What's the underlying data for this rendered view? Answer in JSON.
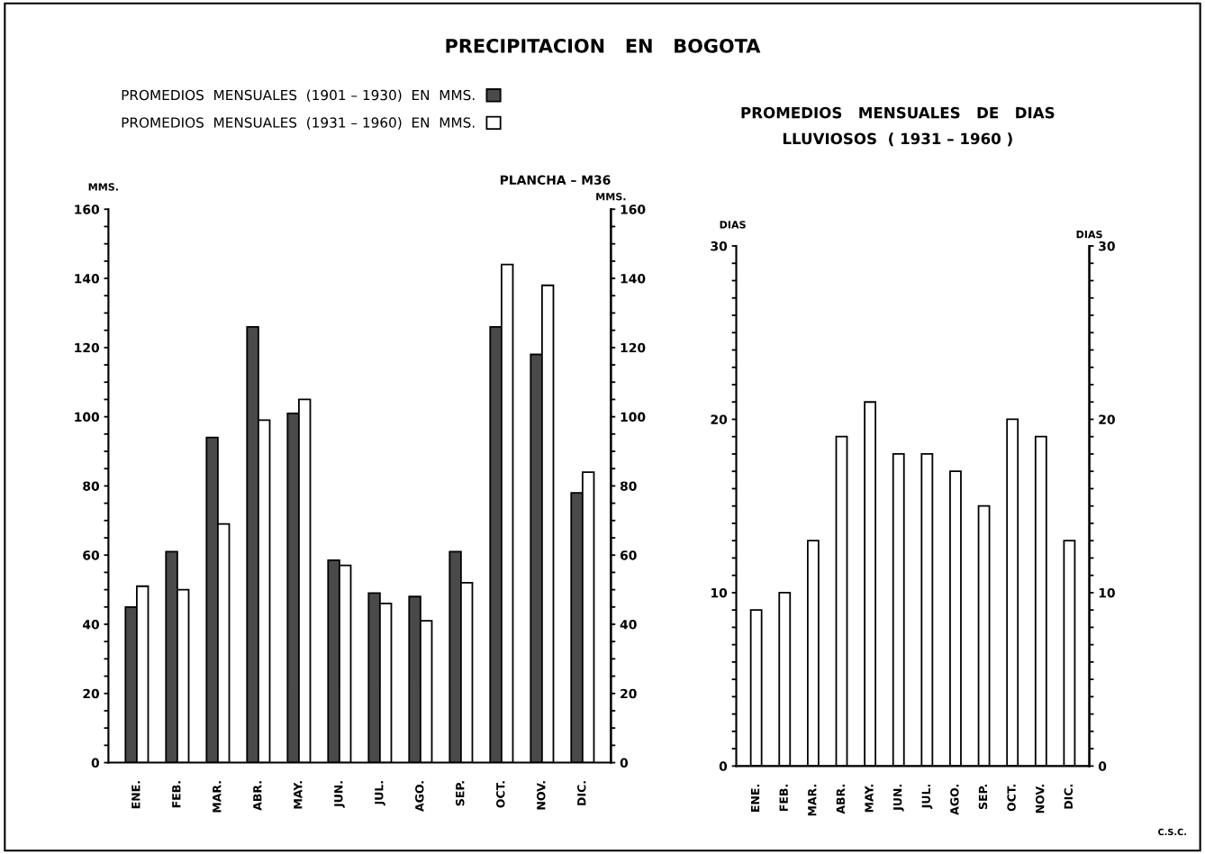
{
  "chart_data": [
    {
      "type": "bar",
      "title": "PRECIPITACION   EN   BOGOTA",
      "ylabel": "MMS.",
      "y2label": "MMS.",
      "categories": [
        "ENE.",
        "FEB.",
        "MAR.",
        "ABR.",
        "MAY.",
        "JUN.",
        "JUL.",
        "AGO.",
        "SEP.",
        "OCT.",
        "NOV.",
        "DIC."
      ],
      "series": [
        {
          "name": "PROMEDIOS  MENSUALES  (1901 – 1930)  EN  MMS.",
          "color": "#4a4a4a",
          "values": [
            45,
            61,
            94,
            126,
            101,
            58.5,
            49,
            48,
            61,
            126,
            118,
            78
          ]
        },
        {
          "name": "PROMEDIOS  MENSUALES  (1931 – 1960)  EN  MMS.",
          "color": "#ffffff",
          "values": [
            51,
            50,
            69,
            99,
            105,
            57,
            46,
            41,
            52,
            144,
            138,
            84
          ]
        }
      ],
      "ylim": [
        0,
        160
      ],
      "yticks": [
        0,
        {
          "value": 5,
          "label": null
        },
        {
          "value": 10,
          "label": null
        },
        {
          "value": 15,
          "label": null
        },
        20,
        {
          "value": 25,
          "label": null
        },
        {
          "value": 30,
          "label": null
        },
        {
          "value": 35,
          "label": null
        },
        40,
        {
          "value": 45,
          "label": null
        },
        {
          "value": 50,
          "label": null
        },
        {
          "value": 55,
          "label": null
        },
        60,
        {
          "value": 65,
          "label": null
        },
        {
          "value": 70,
          "label": null
        },
        {
          "value": 75,
          "label": null
        },
        80,
        {
          "value": 85,
          "label": null
        },
        {
          "value": 90,
          "label": null
        },
        {
          "value": 95,
          "label": null
        },
        100,
        {
          "value": 105,
          "label": null
        },
        {
          "value": 110,
          "label": null
        },
        {
          "value": 115,
          "label": null
        },
        120,
        {
          "value": 125,
          "label": null
        },
        {
          "value": 130,
          "label": null
        },
        {
          "value": 135,
          "label": null
        },
        140,
        {
          "value": 145,
          "label": null
        },
        {
          "value": 150,
          "label": null
        },
        {
          "value": 155,
          "label": null
        },
        160
      ],
      "y2lim": [
        0,
        160
      ],
      "y2ticks": [
        0,
        {
          "value": 5,
          "label": null
        },
        {
          "value": 10,
          "label": null
        },
        {
          "value": 15,
          "label": null
        },
        20,
        {
          "value": 25,
          "label": null
        },
        {
          "value": 30,
          "label": null
        },
        {
          "value": 35,
          "label": null
        },
        40,
        {
          "value": 45,
          "label": null
        },
        {
          "value": 50,
          "label": null
        },
        {
          "value": 55,
          "label": null
        },
        60,
        {
          "value": 65,
          "label": null
        },
        {
          "value": 70,
          "label": null
        },
        {
          "value": 75,
          "label": null
        },
        80,
        {
          "value": 85,
          "label": null
        },
        {
          "value": 90,
          "label": null
        },
        {
          "value": 95,
          "label": null
        },
        100,
        {
          "value": 105,
          "label": null
        },
        {
          "value": 110,
          "label": null
        },
        {
          "value": 115,
          "label": null
        },
        120,
        {
          "value": 125,
          "label": null
        },
        {
          "value": 130,
          "label": null
        },
        {
          "value": 135,
          "label": null
        },
        140,
        {
          "value": 145,
          "label": null
        },
        {
          "value": 150,
          "label": null
        },
        {
          "value": 155,
          "label": null
        },
        160
      ],
      "legend": "top left",
      "grid": false,
      "annotations": [
        "PLANCHA – M36"
      ]
    },
    {
      "type": "bar",
      "title": "PROMEDIOS   MENSUALES   DE   DIAS\nLLUVIOSOS  ( 1931 – 1960 )",
      "ylabel": "DIAS",
      "y2label": "DIAS",
      "categories": [
        "ENE.",
        "FEB.",
        "MAR.",
        "ABR.",
        "MAY.",
        "JUN.",
        "JUL.",
        "AGO.",
        "SEP.",
        "OCT.",
        "NOV.",
        "DIC."
      ],
      "series": [
        {
          "color": "#ffffff",
          "values": [
            9,
            10,
            13,
            19,
            21,
            18,
            18,
            17,
            15,
            20,
            19,
            13
          ]
        }
      ],
      "ylim": [
        0,
        30
      ],
      "yticks": [
        0,
        {
          "value": 1,
          "label": null
        },
        {
          "value": 2,
          "label": null
        },
        {
          "value": 3,
          "label": null
        },
        {
          "value": 4,
          "label": null
        },
        {
          "value": 5,
          "label": null
        },
        {
          "value": 6,
          "label": null
        },
        {
          "value": 7,
          "label": null
        },
        {
          "value": 8,
          "label": null
        },
        {
          "value": 9,
          "label": null
        },
        10,
        {
          "value": 11,
          "label": null
        },
        {
          "value": 12,
          "label": null
        },
        {
          "value": 13,
          "label": null
        },
        {
          "value": 14,
          "label": null
        },
        {
          "value": 15,
          "label": null
        },
        {
          "value": 16,
          "label": null
        },
        {
          "value": 17,
          "label": null
        },
        {
          "value": 18,
          "label": null
        },
        {
          "value": 19,
          "label": null
        },
        20,
        {
          "value": 21,
          "label": null
        },
        {
          "value": 22,
          "label": null
        },
        {
          "value": 23,
          "label": null
        },
        {
          "value": 24,
          "label": null
        },
        {
          "value": 25,
          "label": null
        },
        {
          "value": 26,
          "label": null
        },
        {
          "value": 27,
          "label": null
        },
        {
          "value": 28,
          "label": null
        },
        {
          "value": 29,
          "label": null
        },
        30
      ],
      "y2lim": [
        0,
        30
      ],
      "y2ticks": [
        0,
        {
          "value": 1,
          "label": null
        },
        {
          "value": 2,
          "label": null
        },
        {
          "value": 3,
          "label": null
        },
        {
          "value": 4,
          "label": null
        },
        {
          "value": 5,
          "label": null
        },
        {
          "value": 6,
          "label": null
        },
        {
          "value": 7,
          "label": null
        },
        {
          "value": 8,
          "label": null
        },
        {
          "value": 9,
          "label": null
        },
        10,
        {
          "value": 11,
          "label": null
        },
        {
          "value": 12,
          "label": null
        },
        {
          "value": 13,
          "label": null
        },
        {
          "value": 14,
          "label": null
        },
        {
          "value": 15,
          "label": null
        },
        {
          "value": 16,
          "label": null
        },
        {
          "value": 17,
          "label": null
        },
        {
          "value": 18,
          "label": null
        },
        {
          "value": 19,
          "label": null
        },
        20,
        {
          "value": 21,
          "label": null
        },
        {
          "value": 22,
          "label": null
        },
        {
          "value": 23,
          "label": null
        },
        {
          "value": 24,
          "label": null
        },
        {
          "value": 25,
          "label": null
        },
        {
          "value": 26,
          "label": null
        },
        {
          "value": 27,
          "label": null
        },
        {
          "value": 28,
          "label": null
        },
        {
          "value": 29,
          "label": null
        },
        30
      ],
      "grid": false,
      "annotations": [
        "C.S.C."
      ]
    }
  ]
}
